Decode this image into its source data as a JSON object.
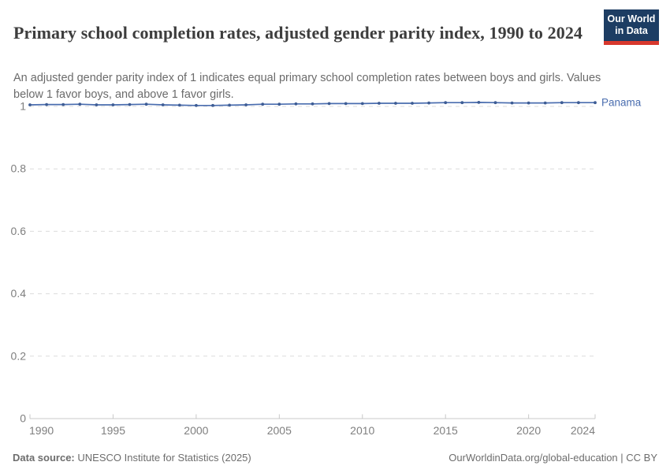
{
  "header": {
    "title": "Primary school completion rates, adjusted gender parity index, 1990 to 2024",
    "subtitle": "An adjusted gender parity index of 1 indicates equal primary school completion rates between boys and girls. Values below 1 favor boys, and above 1 favor girls.",
    "logo": {
      "line1": "Our World",
      "line2": "in Data",
      "bg_color": "#1d3d63",
      "accent_color": "#d7382d"
    }
  },
  "chart_data": {
    "type": "line",
    "title": "Primary school completion rates, adjusted gender parity index, 1990 to 2024",
    "xlabel": "",
    "ylabel": "",
    "xlim": [
      1990,
      2024
    ],
    "ylim": [
      0,
      1
    ],
    "yticks": [
      0,
      0.2,
      0.4,
      0.6,
      0.8,
      1
    ],
    "xticks": [
      1990,
      1995,
      2000,
      2005,
      2010,
      2015,
      2020,
      2024
    ],
    "grid": "horizontal-dashed",
    "legend_position": "end-of-line-label",
    "x": [
      1990,
      1991,
      1992,
      1993,
      1994,
      1995,
      1996,
      1997,
      1998,
      1999,
      2000,
      2001,
      2002,
      2003,
      2004,
      2005,
      2006,
      2007,
      2008,
      2009,
      2010,
      2011,
      2012,
      2013,
      2014,
      2015,
      2016,
      2017,
      2018,
      2019,
      2020,
      2021,
      2022,
      2023,
      2024
    ],
    "series": [
      {
        "name": "Panama",
        "color": "#4a6daf",
        "marker_color": "#3d5c94",
        "values": [
          1.005,
          1.006,
          1.006,
          1.007,
          1.005,
          1.005,
          1.006,
          1.007,
          1.005,
          1.004,
          1.003,
          1.003,
          1.004,
          1.005,
          1.007,
          1.007,
          1.008,
          1.008,
          1.009,
          1.009,
          1.009,
          1.01,
          1.01,
          1.01,
          1.011,
          1.012,
          1.012,
          1.013,
          1.012,
          1.011,
          1.011,
          1.011,
          1.012,
          1.012,
          1.012
        ]
      }
    ]
  },
  "footer": {
    "datasource_label": "Data source:",
    "datasource": "UNESCO Institute for Statistics (2025)",
    "license": "OurWorldinData.org/global-education | CC BY"
  }
}
